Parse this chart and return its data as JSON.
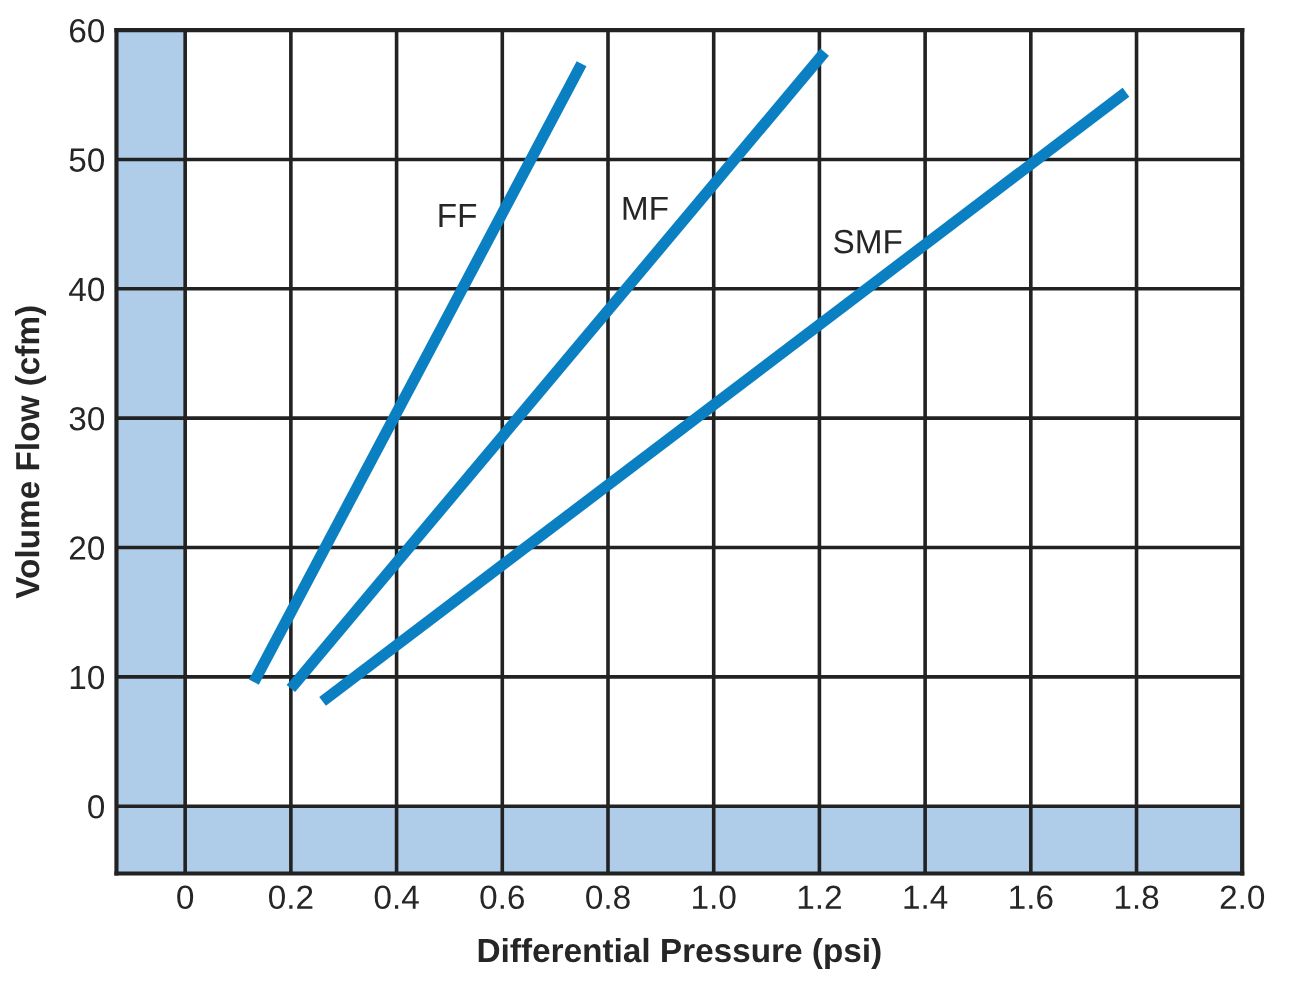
{
  "chart_data": {
    "type": "line",
    "xlabel": "Differential Pressure (psi)",
    "ylabel": "Volume Flow (cfm)",
    "series": [
      {
        "name": "FF",
        "color": "#0a80c2",
        "x": [
          0.13,
          0.75
        ],
        "values": [
          9.6,
          57.4
        ]
      },
      {
        "name": "MF",
        "color": "#0a80c2",
        "x": [
          0.2,
          1.21
        ],
        "values": [
          9.1,
          58.3
        ]
      },
      {
        "name": "SMF",
        "color": "#0a80c2",
        "x": [
          0.26,
          1.78
        ],
        "values": [
          8.1,
          55.2
        ]
      }
    ],
    "xlim": [
      -0.13,
      2.0
    ],
    "ylim": [
      -5.2,
      60
    ],
    "xticks": [
      0,
      0.2,
      0.4,
      0.6,
      0.8,
      {
        "value": 1.0,
        "label": "1.0"
      },
      1.2,
      1.4,
      1.6,
      1.8,
      {
        "value": 2.0,
        "label": "2.0"
      }
    ],
    "yticks": [
      0,
      10,
      20,
      30,
      40,
      50,
      60
    ],
    "bands": [
      {
        "axis": "x",
        "from": -0.13,
        "to": 0,
        "color": "#afcce8"
      },
      {
        "axis": "y",
        "from": -5.2,
        "to": 0,
        "color": "#afcce8"
      }
    ],
    "grid": true,
    "legend": false,
    "marker": "none",
    "line_style": "solid"
  }
}
